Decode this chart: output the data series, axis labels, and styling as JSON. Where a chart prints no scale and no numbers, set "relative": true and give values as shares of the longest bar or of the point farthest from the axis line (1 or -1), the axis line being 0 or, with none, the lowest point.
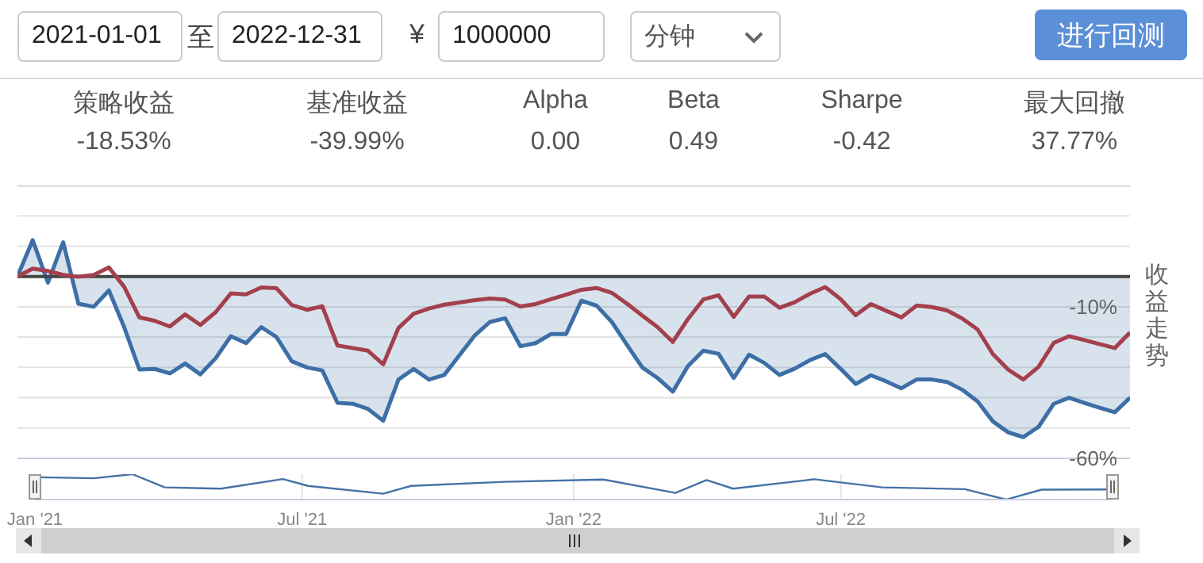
{
  "chart_data": [
    {
      "type": "other",
      "categories": [
        "策略收益",
        "基准收益",
        "Alpha",
        "Beta",
        "Sharpe",
        "最大回撤"
      ],
      "value_labels": [
        "-18.53%",
        "-39.99%",
        "0.00",
        "0.49",
        "-0.42",
        "37.77%"
      ],
      "annotations": [
        "2021-01-01",
        "至",
        "2022-12-31",
        "¥",
        "1000000",
        "分钟",
        "进行回测"
      ]
    },
    {
      "type": "line",
      "ylabel": "收益走势",
      "categories": [
        null,
        null,
        null,
        null,
        null,
        null,
        null,
        null,
        null,
        null,
        null,
        null,
        null,
        null,
        null,
        null,
        null,
        null,
        null,
        null,
        null,
        null,
        null,
        null,
        null,
        null,
        null,
        null,
        null,
        null,
        null,
        null,
        null,
        null,
        null,
        null,
        null,
        null,
        null,
        null,
        null,
        null,
        null,
        null,
        null,
        null,
        null,
        null,
        null,
        null,
        null,
        null,
        null,
        null,
        null,
        null,
        null,
        null,
        null,
        null,
        null,
        null,
        null,
        null,
        null,
        null,
        null,
        null,
        null,
        null,
        null,
        null,
        null,
        null
      ],
      "series": [
        {
          "type": "area",
          "color": "#3d6fa6",
          "values": [
            0,
            12,
            -2,
            11.3,
            -9,
            -10,
            -4.6,
            -16.7,
            -30.7,
            -30.5,
            -32,
            -28.7,
            -32.3,
            -27,
            -19.7,
            -22,
            -16.7,
            -20,
            -28,
            -30,
            -31,
            -41.7,
            -42,
            -43.7,
            -47.6,
            -34,
            -30.5,
            -34,
            -32.5,
            -26,
            -19.5,
            -15,
            -13.8,
            -23,
            -22,
            -19,
            -19,
            -8,
            -9.6,
            -15,
            -22.6,
            -30,
            -33.5,
            -38,
            -29.5,
            -24.5,
            -25.5,
            -33.5,
            -25.8,
            -28.5,
            -32.5,
            -30.4,
            -27.6,
            -25.6,
            -30.4,
            -35.5,
            -32.6,
            -34.6,
            -36.9,
            -34,
            -34,
            -34.8,
            -37.4,
            -41.2,
            -47.8,
            -51.4,
            -53,
            -49.6,
            -42,
            -40,
            -41.7,
            -43.3,
            -44.8,
            -40
          ]
        },
        {
          "color": "#a4404d",
          "values": [
            0,
            2.6,
            1.8,
            0.5,
            -0.1,
            0.5,
            3,
            -3.4,
            -13.5,
            -14.6,
            -16.5,
            -12.5,
            -16,
            -11.8,
            -5.6,
            -5.9,
            -3.6,
            -3.9,
            -9.4,
            -11,
            -9.8,
            -22.8,
            -23.6,
            -24.5,
            -29,
            -17,
            -12.3,
            -10.6,
            -9.3,
            -8.6,
            -7.8,
            -7.3,
            -7.6,
            -9.9,
            -9.1,
            -7.5,
            -6,
            -4.4,
            -3.8,
            -5.4,
            -9,
            -12.9,
            -16.7,
            -21.6,
            -14,
            -7.6,
            -6.2,
            -13.3,
            -6.6,
            -6.6,
            -10.3,
            -8.5,
            -5.7,
            -3.5,
            -7.4,
            -12.8,
            -9.1,
            -11.3,
            -13.5,
            -9.6,
            -10.1,
            -11.2,
            -13.9,
            -17.5,
            -25.6,
            -30.7,
            -34,
            -29.8,
            -21.9,
            -19.7,
            -21,
            -22.3,
            -23.6,
            -18.5
          ]
        }
      ],
      "ylim": [
        -60,
        30
      ],
      "yticks": [
        {
          "value": 30,
          "label": null
        },
        {
          "value": 20,
          "label": null
        },
        {
          "value": 10,
          "label": null
        },
        {
          "value": 0,
          "label": null
        },
        {
          "value": -10,
          "label": "-10%"
        },
        {
          "value": -20,
          "label": null
        },
        {
          "value": -30,
          "label": null
        },
        {
          "value": -40,
          "label": null
        },
        {
          "value": -50,
          "label": null
        },
        {
          "value": -60,
          "label": "-60%"
        }
      ],
      "ref_lines": [
        {
          "axis": "y",
          "value": 0,
          "color": "#444444"
        }
      ],
      "grid": "y",
      "tick_labels": "y",
      "marker": "none",
      "line_style": "solid"
    },
    {
      "type": "line",
      "relative": true,
      "x": [
        "2021-01-04",
        "2021-02-10",
        "2021-03-08",
        "2021-03-30",
        "2021-05-07",
        "2021-06-18",
        "2021-07-05",
        "2021-08-25",
        "2021-09-13",
        "2021-11-15",
        "2022-01-21",
        "2022-03-11",
        "2022-04-01",
        "2022-04-19",
        "2022-06-13",
        "2022-07-29",
        "2022-09-23",
        "2022-10-21",
        "2022-11-14",
        "2022-12-30"
      ],
      "series": [
        {
          "color": "#4572a7",
          "values": [
            0.88,
            0.84,
            1,
            0.48,
            0.43,
            0.81,
            0.54,
            0.23,
            0.54,
            0.7,
            0.79,
            0.26,
            0.77,
            0.43,
            0.8,
            0.48,
            0.41,
            0,
            0.39,
            0.4
          ]
        }
      ],
      "xlim": [
        "2021-01-01",
        "2022-12-31"
      ],
      "xticks": [
        {
          "value": "2021-01-01",
          "label": "Jan '21"
        },
        {
          "value": "2021-07-01",
          "label": "Jul '21"
        },
        {
          "value": "2022-01-01",
          "label": "Jan '22"
        },
        {
          "value": "2022-07-01",
          "label": "Jul '22"
        }
      ],
      "grid": "x",
      "tick_labels": "x",
      "marker": "none",
      "line_style": "solid"
    }
  ]
}
